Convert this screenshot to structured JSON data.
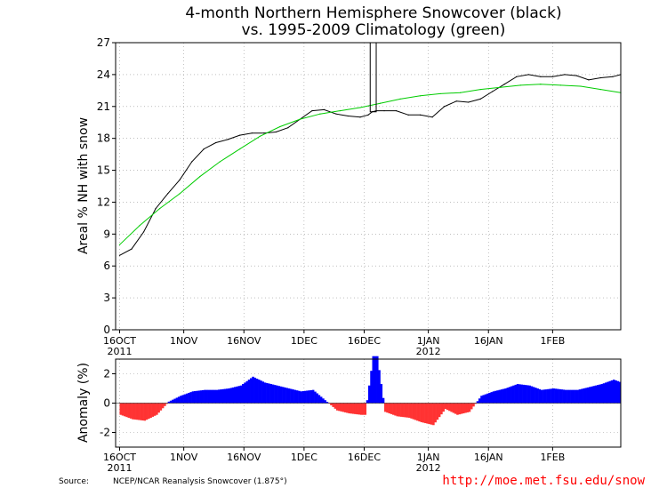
{
  "chart_data": [
    {
      "type": "line",
      "title": "4-month Northern Hemisphere Snowcover (black)",
      "subtitle": "vs. 1995-2009 Climatology (green)",
      "ylabel": "Areal % NH with snow",
      "xlabel": "",
      "ylim": [
        0,
        27
      ],
      "yticks": [
        "0",
        "3",
        "6",
        "9",
        "12",
        "15",
        "18",
        "21",
        "24",
        "27"
      ],
      "xticks": [
        {
          "label": "16OCT",
          "day": 0
        },
        {
          "label": "1NOV",
          "day": 16
        },
        {
          "label": "16NOV",
          "day": 31
        },
        {
          "label": "1DEC",
          "day": 46
        },
        {
          "label": "16DEC",
          "day": 61
        },
        {
          "label": "1JAN",
          "day": 77
        },
        {
          "label": "16JAN",
          "day": 92
        },
        {
          "label": "1FEB",
          "day": 108
        }
      ],
      "xlim_days": [
        -1,
        125
      ],
      "year_labels": [
        {
          "label": "2011",
          "day": 0
        },
        {
          "label": "2012",
          "day": 77
        }
      ],
      "grid": true,
      "series": [
        {
          "color": "#000000",
          "x": [
            0,
            3,
            6,
            9,
            12,
            15,
            18,
            21,
            24,
            27,
            30,
            33,
            36,
            39,
            42,
            45,
            48,
            51,
            54,
            57,
            60,
            62,
            63,
            64,
            66,
            69,
            72,
            75,
            78,
            81,
            84,
            87,
            90,
            93,
            96,
            99,
            102,
            105,
            108,
            111,
            114,
            117,
            120,
            123,
            125
          ],
          "values": [
            7.0,
            7.6,
            9.2,
            11.4,
            12.8,
            14.1,
            15.8,
            17.0,
            17.6,
            17.9,
            18.3,
            18.5,
            18.5,
            18.6,
            19.0,
            19.8,
            20.6,
            20.7,
            20.3,
            20.1,
            20.0,
            20.2,
            20.5,
            20.6,
            20.6,
            20.6,
            20.2,
            20.2,
            20.0,
            21.0,
            21.5,
            21.4,
            21.7,
            22.4,
            23.1,
            23.8,
            24.0,
            23.8,
            23.8,
            24.0,
            23.9,
            23.5,
            23.7,
            23.8,
            24.0
          ]
        },
        {
          "color": "#00cc00",
          "x": [
            0,
            5,
            10,
            15,
            20,
            25,
            30,
            35,
            40,
            45,
            50,
            55,
            60,
            65,
            70,
            75,
            80,
            85,
            90,
            95,
            100,
            105,
            110,
            115,
            120,
            125
          ],
          "values": [
            8.0,
            9.8,
            11.4,
            12.8,
            14.4,
            15.8,
            17.0,
            18.2,
            19.1,
            19.8,
            20.3,
            20.6,
            20.9,
            21.3,
            21.7,
            22.0,
            22.2,
            22.3,
            22.6,
            22.8,
            23.0,
            23.1,
            23.0,
            22.9,
            22.6,
            22.3
          ]
        }
      ]
    },
    {
      "type": "bar",
      "ylabel": "Anomaly (%)",
      "ylim": [
        -3,
        3
      ],
      "yticks": [
        "-2",
        "0",
        "2"
      ],
      "xticks_same_as_above": true,
      "positive_color": "#0000ff",
      "negative_color": "#ff3333",
      "x": [
        0,
        3,
        6,
        9,
        12,
        15,
        18,
        21,
        24,
        27,
        30,
        33,
        36,
        39,
        42,
        45,
        48,
        51,
        54,
        57,
        60,
        61,
        63,
        64,
        66,
        69,
        72,
        75,
        78,
        81,
        84,
        87,
        90,
        93,
        96,
        99,
        102,
        105,
        108,
        111,
        114,
        117,
        120,
        123,
        125
      ],
      "values": [
        -0.8,
        -1.1,
        -1.2,
        -0.8,
        0.1,
        0.5,
        0.8,
        0.9,
        0.9,
        1.0,
        1.2,
        1.8,
        1.4,
        1.2,
        1.0,
        0.8,
        0.9,
        0.2,
        -0.5,
        -0.7,
        -0.8,
        -0.8,
        3.2,
        3.2,
        -0.6,
        -0.9,
        -1.0,
        -1.3,
        -1.5,
        -0.4,
        -0.8,
        -0.6,
        0.5,
        0.8,
        1.0,
        1.3,
        1.2,
        0.9,
        1.0,
        0.9,
        0.9,
        1.1,
        1.3,
        1.6,
        1.4
      ]
    }
  ],
  "footer": {
    "source_label": "Source:",
    "source_text": "NCEP/NCAR Reanalysis Snowcover (1.875°)",
    "url": "http://moe.met.fsu.edu/snow"
  }
}
